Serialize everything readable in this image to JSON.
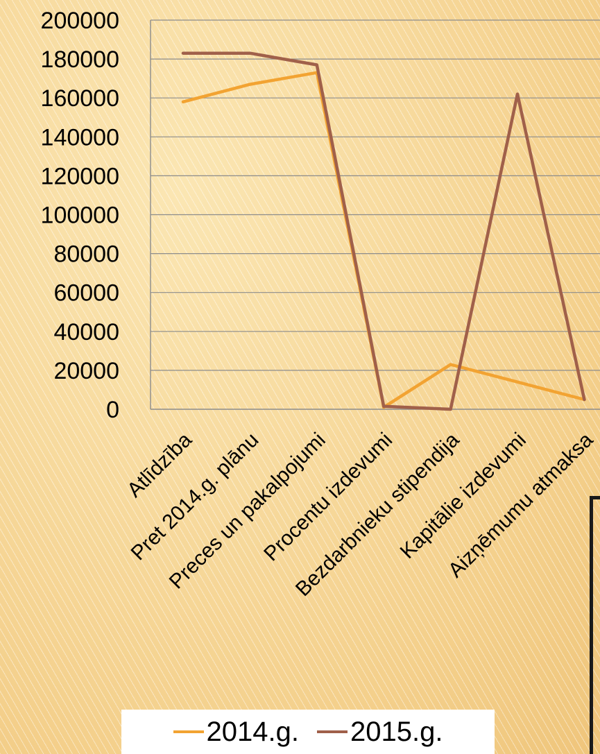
{
  "chart_data": {
    "type": "line",
    "title": "",
    "xlabel": "",
    "ylabel": "",
    "categories": [
      "Atlīdzība",
      "Pret 2014.g. plānu",
      "Preces un pakalpojumi",
      "Procentu izdevumi",
      "Bezdarbnieku stipendija",
      "Kapitālie izdevumi",
      "Aizņēmumu atmaksa"
    ],
    "ylim": [
      0,
      200000
    ],
    "yticks": [
      "0",
      "20000",
      "40000",
      "60000",
      "80000",
      "100000",
      "120000",
      "140000",
      "160000",
      "180000",
      "200000"
    ],
    "grid": true,
    "legend_position": "bottom",
    "series": [
      {
        "name": "2014.g.",
        "color": "#f2a332",
        "values": [
          158000,
          167000,
          173000,
          1000,
          23000,
          14000,
          5000
        ]
      },
      {
        "name": "2015.g.",
        "color": "#a0604a",
        "values": [
          183000,
          183000,
          177000,
          1500,
          0,
          162000,
          5000
        ]
      }
    ]
  }
}
